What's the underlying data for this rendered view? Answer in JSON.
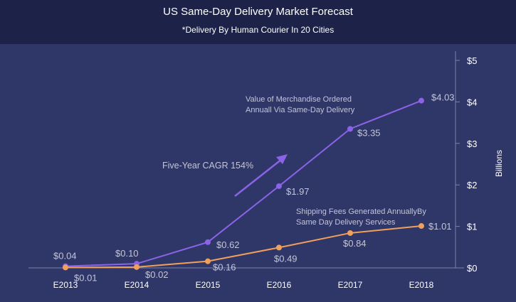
{
  "header": {
    "title": "US Same-Day Delivery Market Forecast",
    "subtitle": "*Delivery By Human Courier In 20 Cities"
  },
  "chart_data": {
    "type": "line",
    "title": "US Same-Day Delivery Market Forecast",
    "subtitle": "*Delivery By Human Courier In 20 Cities",
    "categories": [
      "E2013",
      "E2014",
      "E2015",
      "E2016",
      "E2017",
      "E2018"
    ],
    "ylabel": "Billions",
    "ylim": [
      0,
      5
    ],
    "yticks": [
      "$0",
      "$1",
      "$2",
      "$3",
      "$4",
      "$5"
    ],
    "y_axis_position": "right",
    "grid": false,
    "series": [
      {
        "name": "Value of Merchandise Ordered Annuall Via Same-Day Delivery",
        "name_lines": [
          "Value of Merchandise Ordered",
          "Annuall Via Same-Day Delivery"
        ],
        "color": "#8b63e6",
        "values": [
          0.04,
          0.1,
          0.62,
          1.97,
          3.35,
          4.03
        ],
        "labels": [
          "$0.04",
          "$0.10",
          "$0.62",
          "$1.97",
          "$3.35",
          "$4.03"
        ]
      },
      {
        "name": "Shipping Fees Generated AnnuallyBy Same Day Delivery Services",
        "name_lines": [
          "Shipping Fees Generated AnnuallyBy",
          "Same Day Delivery Services"
        ],
        "color": "#f0a05a",
        "values": [
          0.01,
          0.02,
          0.16,
          0.49,
          0.84,
          1.01
        ],
        "labels": [
          "$0.01",
          "$0.02",
          "$0.16",
          "$0.49",
          "$0.84",
          "$1.01"
        ]
      }
    ],
    "annotations": [
      {
        "text": "Five-Year CAGR 154%",
        "arrow_color": "#8b63e6"
      }
    ]
  }
}
